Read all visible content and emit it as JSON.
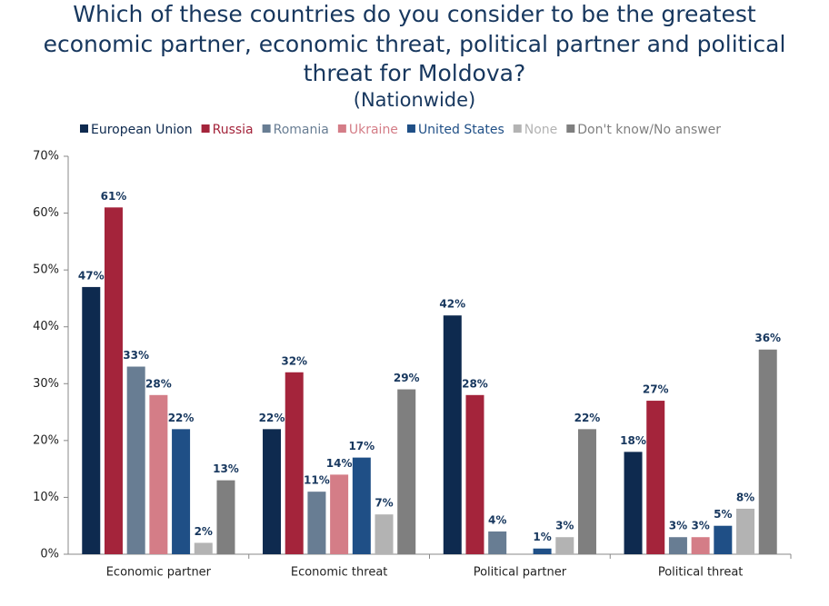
{
  "chart_data": {
    "type": "bar",
    "title": [
      "Which of these countries do you consider to be the greatest",
      "economic partner, economic threat, political partner and political",
      "threat for Moldova?"
    ],
    "subtitle": "(Nationwide)",
    "categories": [
      "Economic partner",
      "Economic threat",
      "Political partner",
      "Political threat"
    ],
    "series": [
      {
        "name": "European Union",
        "color": "#0e2a4f",
        "values": [
          47,
          22,
          42,
          18
        ],
        "value_labels": [
          "47%",
          "22%",
          "42%",
          "18%"
        ]
      },
      {
        "name": "Russia",
        "color": "#a4243b",
        "values": [
          61,
          32,
          28,
          27
        ],
        "value_labels": [
          "61%",
          "32%",
          "28%",
          "27%"
        ]
      },
      {
        "name": "Romania",
        "color": "#687d93",
        "values": [
          33,
          11,
          4,
          3
        ],
        "value_labels": [
          "33%",
          "11%",
          "4%",
          "3%"
        ]
      },
      {
        "name": "Ukraine",
        "color": "#d47d87",
        "values": [
          28,
          14,
          null,
          3
        ],
        "value_labels": [
          "28%",
          "14%",
          null,
          "3%"
        ]
      },
      {
        "name": "United States",
        "color": "#1f4f86",
        "values": [
          22,
          17,
          1,
          5
        ],
        "value_labels": [
          "22%",
          "17%",
          "1%",
          "5%"
        ]
      },
      {
        "name": "None",
        "color": "#b3b3b3",
        "values": [
          2,
          7,
          3,
          8
        ],
        "value_labels": [
          "2%",
          "7%",
          "3%",
          "8%"
        ]
      },
      {
        "name": "Don't know/No answer",
        "color": "#7f7f7f",
        "values": [
          13,
          29,
          22,
          36
        ],
        "value_labels": [
          "13%",
          "29%",
          "22%",
          "36%"
        ]
      }
    ],
    "ylim": [
      0,
      70
    ],
    "yticks": [
      {
        "value": 0,
        "label": "0%"
      },
      {
        "value": 10,
        "label": "10%"
      },
      {
        "value": 20,
        "label": "20%"
      },
      {
        "value": 30,
        "label": "30%"
      },
      {
        "value": 40,
        "label": "40%"
      },
      {
        "value": 50,
        "label": "50%"
      },
      {
        "value": 60,
        "label": "60%"
      },
      {
        "value": 70,
        "label": "70%"
      }
    ],
    "grid": false
  }
}
